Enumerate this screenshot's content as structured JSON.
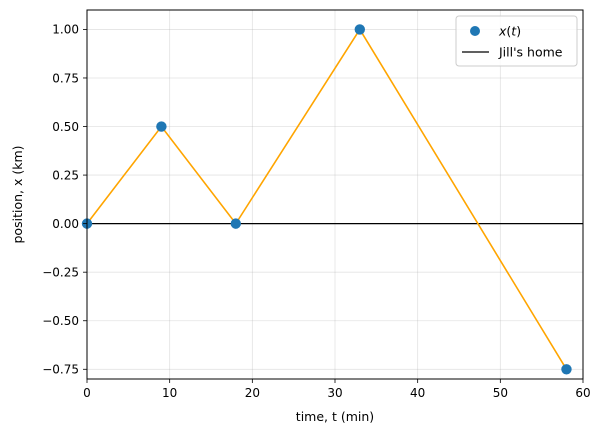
{
  "chart_data": {
    "type": "line",
    "title": "",
    "xlabel": "time, t (min)",
    "ylabel": "position, x (km)",
    "xlim": [
      0,
      60
    ],
    "ylim": [
      -0.8,
      1.1
    ],
    "xticks": [
      0,
      10,
      20,
      30,
      40,
      50,
      60
    ],
    "yticks": [
      -0.75,
      -0.5,
      -0.25,
      0.0,
      0.25,
      0.5,
      0.75,
      1.0
    ],
    "xtick_labels": [
      "0",
      "10",
      "20",
      "30",
      "40",
      "50",
      "60"
    ],
    "ytick_labels": [
      "−0.75",
      "−0.50",
      "−0.25",
      "0.00",
      "0.25",
      "0.50",
      "0.75",
      "1.00"
    ],
    "grid": true,
    "legend_position": "top-right",
    "series": [
      {
        "name": "x(t)",
        "x": [
          0,
          9,
          18,
          33,
          58
        ],
        "y": [
          0,
          0.5,
          0,
          1.0,
          -0.75
        ],
        "marker_color": "#1f77b4",
        "line_color": "#ffa500"
      }
    ],
    "reference_lines": [
      {
        "name": "Jill's home",
        "y": 0,
        "color": "#000000"
      }
    ],
    "legend": {
      "entries": [
        {
          "label_var": "x",
          "label_open": "(",
          "label_arg": "t",
          "label_close": ")",
          "marker": "circle",
          "color": "#1f77b4"
        },
        {
          "label": "Jill's home",
          "marker": "line",
          "color": "#000000"
        }
      ]
    }
  }
}
